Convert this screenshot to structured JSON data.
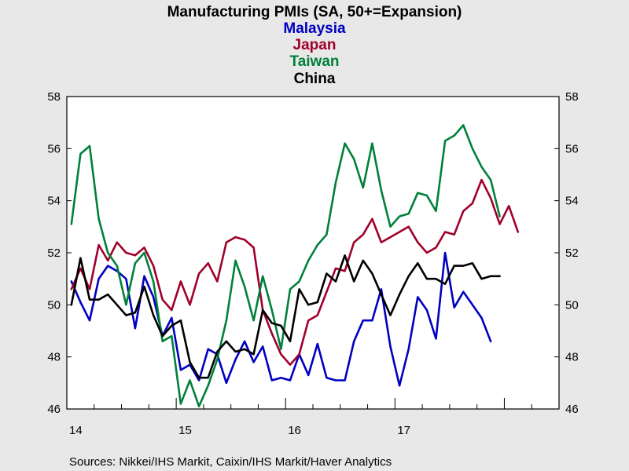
{
  "chart_data": {
    "type": "line",
    "title": "Manufacturing PMIs (SA, 50+=Expansion)",
    "legend_lines": [
      "Malaysia",
      "Japan",
      "Taiwan",
      "China"
    ],
    "source": "Sources:  Nikkei/IHS Markit, Caixin/IHS Markit/Haver Analytics",
    "ylim": [
      46,
      58
    ],
    "yticks": [
      "46",
      "48",
      "50",
      "52",
      "54",
      "56",
      "58"
    ],
    "xtick_labels": [
      "14",
      "15",
      "16",
      "17"
    ],
    "x_months": [
      "2014-01",
      "2014-02",
      "2014-03",
      "2014-04",
      "2014-05",
      "2014-06",
      "2014-07",
      "2014-08",
      "2014-09",
      "2014-10",
      "2014-11",
      "2014-12",
      "2015-01",
      "2015-02",
      "2015-03",
      "2015-04",
      "2015-05",
      "2015-06",
      "2015-07",
      "2015-08",
      "2015-09",
      "2015-10",
      "2015-11",
      "2015-12",
      "2016-01",
      "2016-02",
      "2016-03",
      "2016-04",
      "2016-05",
      "2016-06",
      "2016-07",
      "2016-08",
      "2016-09",
      "2016-10",
      "2016-11",
      "2016-12",
      "2017-01",
      "2017-02",
      "2017-03",
      "2017-04",
      "2017-05",
      "2017-06",
      "2017-07",
      "2017-08",
      "2017-09",
      "2017-10",
      "2017-11",
      "2017-12",
      "2018-01",
      "2018-02",
      "2018-03",
      "2018-04",
      "2018-05",
      "2018-06"
    ],
    "grid": false,
    "legend_position": "top-center (as title lines)",
    "series": [
      {
        "name": "Malaysia",
        "color": "#0000c0",
        "values": [
          50.9,
          50.1,
          49.4,
          51.0,
          51.5,
          51.3,
          51.0,
          49.1,
          51.1,
          50.3,
          48.8,
          49.5,
          47.5,
          47.7,
          47.1,
          48.3,
          48.1,
          47.0,
          47.9,
          48.6,
          47.8,
          48.4,
          47.1,
          47.2,
          47.1,
          48.1,
          47.3,
          48.5,
          47.2,
          47.1,
          47.1,
          48.6,
          49.4,
          49.4,
          50.6,
          48.4,
          46.9,
          48.3,
          50.3,
          49.8,
          48.7,
          52.0,
          49.9,
          50.5,
          50.0,
          49.5,
          48.6
        ]
      },
      {
        "name": "Japan",
        "color": "#a0002a",
        "values": [
          50.6,
          51.4,
          50.6,
          52.3,
          51.7,
          52.4,
          52.0,
          51.9,
          52.2,
          51.5,
          50.2,
          49.8,
          50.9,
          50.0,
          51.2,
          51.6,
          50.9,
          52.4,
          52.6,
          52.5,
          52.2,
          49.8,
          48.9,
          48.1,
          47.7,
          48.1,
          49.4,
          49.6,
          50.5,
          51.4,
          51.3,
          52.4,
          52.7,
          53.3,
          52.4,
          52.6,
          52.8,
          53.0,
          52.4,
          52.0,
          52.2,
          52.8,
          52.7,
          53.6,
          53.9,
          54.8,
          54.1,
          53.1,
          53.8,
          52.8
        ]
      },
      {
        "name": "Taiwan",
        "color": "#00803a",
        "values": [
          53.1,
          55.8,
          56.1,
          53.3,
          52.0,
          51.5,
          50.0,
          51.6,
          52.0,
          50.9,
          48.6,
          48.8,
          46.2,
          47.1,
          46.1,
          46.9,
          47.9,
          49.4,
          51.7,
          50.7,
          49.4,
          51.1,
          49.8,
          48.3,
          50.6,
          50.9,
          51.7,
          52.3,
          52.7,
          54.7,
          56.2,
          55.6,
          54.5,
          56.2,
          54.4,
          53.0,
          53.4,
          53.5,
          54.3,
          54.2,
          53.6,
          56.3,
          56.5,
          56.9,
          56.0,
          55.3,
          54.8,
          53.4
        ]
      },
      {
        "name": "China",
        "color": "#000000",
        "values": [
          50.0,
          51.8,
          50.2,
          50.2,
          50.4,
          50.0,
          49.6,
          49.7,
          50.7,
          49.6,
          48.8,
          49.2,
          49.4,
          47.8,
          47.2,
          47.2,
          48.2,
          48.6,
          48.2,
          48.3,
          48.1,
          49.8,
          49.3,
          49.2,
          48.6,
          50.6,
          50.0,
          50.1,
          51.2,
          50.9,
          51.9,
          50.9,
          51.7,
          51.2,
          50.4,
          49.6,
          50.4,
          51.1,
          51.6,
          51.0,
          51.0,
          50.8,
          51.5,
          51.5,
          51.6,
          51.0,
          51.1,
          51.1
        ]
      }
    ]
  }
}
